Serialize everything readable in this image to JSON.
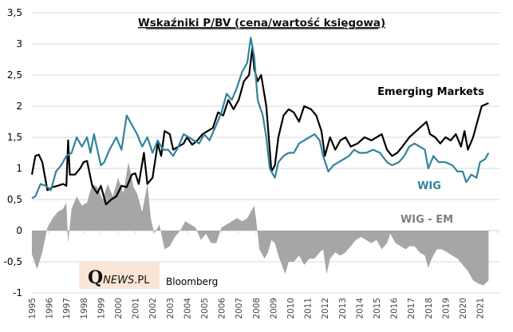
{
  "chart_data": {
    "type": "line",
    "title": "Wskaźniki P/BV (cena/wartość księgowa)",
    "xlabel": "",
    "ylabel": "",
    "ylim": [
      -1,
      3.5
    ],
    "xlim": [
      1995,
      2022
    ],
    "yticks": [
      "3,5",
      "3",
      "2,5",
      "2",
      "1,5",
      "1",
      "0,5",
      "0",
      "-0,5",
      "-1"
    ],
    "ytick_values": [
      3.5,
      3,
      2.5,
      2,
      1.5,
      1,
      0.5,
      0,
      -0.5,
      -1
    ],
    "xticks": [
      "1995",
      "1996",
      "1997",
      "1998",
      "1999",
      "2000",
      "2001",
      "2002",
      "2003",
      "2004",
      "2005",
      "2006",
      "2007",
      "2008",
      "2009",
      "2010",
      "2011",
      "2012",
      "2013",
      "2014",
      "2015",
      "2016",
      "2017",
      "2018",
      "2019",
      "2020",
      "2021"
    ],
    "grid": true,
    "legend": "inline labels",
    "annotations": {
      "em_label": "Emerging Markets",
      "wig_label": "WIG",
      "diff_label": "WIG - EM",
      "source": "Bloomberg",
      "logo_q": "Q",
      "logo_news": "NEWS",
      "logo_pl": ".PL"
    },
    "colors": {
      "em": "#000000",
      "wig": "#31849b",
      "diff": "#a6a6a6",
      "grid": "#d9d9d9",
      "logo_bg": "#fbe5d6"
    },
    "series": [
      {
        "name": "Emerging Markets",
        "type": "line",
        "points": [
          [
            1995.0,
            0.9
          ],
          [
            1995.2,
            1.2
          ],
          [
            1995.4,
            1.22
          ],
          [
            1995.6,
            1.1
          ],
          [
            1995.9,
            0.65
          ],
          [
            1996.2,
            0.7
          ],
          [
            1996.5,
            0.72
          ],
          [
            1996.8,
            0.75
          ],
          [
            1997.0,
            0.72
          ],
          [
            1997.1,
            1.45
          ],
          [
            1997.2,
            0.9
          ],
          [
            1997.5,
            0.9
          ],
          [
            1997.8,
            1.0
          ],
          [
            1998.0,
            1.1
          ],
          [
            1998.2,
            1.12
          ],
          [
            1998.5,
            0.72
          ],
          [
            1998.8,
            0.6
          ],
          [
            1999.0,
            0.72
          ],
          [
            1999.3,
            0.42
          ],
          [
            1999.6,
            0.5
          ],
          [
            1999.9,
            0.55
          ],
          [
            2000.2,
            0.72
          ],
          [
            2000.5,
            0.7
          ],
          [
            2000.8,
            0.9
          ],
          [
            2001.0,
            0.92
          ],
          [
            2001.2,
            0.75
          ],
          [
            2001.5,
            1.25
          ],
          [
            2001.7,
            0.75
          ],
          [
            2002.0,
            0.85
          ],
          [
            2002.3,
            1.4
          ],
          [
            2002.5,
            1.2
          ],
          [
            2002.7,
            1.6
          ],
          [
            2003.0,
            1.55
          ],
          [
            2003.2,
            1.3
          ],
          [
            2003.5,
            1.35
          ],
          [
            2003.8,
            1.4
          ],
          [
            2004.0,
            1.5
          ],
          [
            2004.3,
            1.38
          ],
          [
            2004.6,
            1.45
          ],
          [
            2004.9,
            1.55
          ],
          [
            2005.2,
            1.6
          ],
          [
            2005.5,
            1.65
          ],
          [
            2005.8,
            1.9
          ],
          [
            2006.1,
            1.85
          ],
          [
            2006.4,
            2.1
          ],
          [
            2006.7,
            1.95
          ],
          [
            2007.0,
            2.1
          ],
          [
            2007.3,
            2.4
          ],
          [
            2007.6,
            2.5
          ],
          [
            2007.8,
            2.95
          ],
          [
            2007.9,
            2.6
          ],
          [
            2008.1,
            2.4
          ],
          [
            2008.3,
            2.5
          ],
          [
            2008.6,
            2.0
          ],
          [
            2008.8,
            1.3
          ],
          [
            2008.9,
            0.95
          ],
          [
            2009.1,
            1.05
          ],
          [
            2009.3,
            1.5
          ],
          [
            2009.6,
            1.85
          ],
          [
            2009.9,
            1.95
          ],
          [
            2010.2,
            1.9
          ],
          [
            2010.5,
            1.75
          ],
          [
            2010.8,
            2.0
          ],
          [
            2011.2,
            1.95
          ],
          [
            2011.5,
            1.85
          ],
          [
            2011.8,
            1.6
          ],
          [
            2012.0,
            1.2
          ],
          [
            2012.3,
            1.5
          ],
          [
            2012.6,
            1.3
          ],
          [
            2012.9,
            1.45
          ],
          [
            2013.2,
            1.5
          ],
          [
            2013.5,
            1.35
          ],
          [
            2013.9,
            1.4
          ],
          [
            2014.3,
            1.5
          ],
          [
            2014.7,
            1.45
          ],
          [
            2015.0,
            1.5
          ],
          [
            2015.3,
            1.55
          ],
          [
            2015.6,
            1.3
          ],
          [
            2015.9,
            1.2
          ],
          [
            2016.2,
            1.25
          ],
          [
            2016.5,
            1.35
          ],
          [
            2016.9,
            1.5
          ],
          [
            2017.3,
            1.6
          ],
          [
            2017.7,
            1.7
          ],
          [
            2017.9,
            1.75
          ],
          [
            2018.1,
            1.55
          ],
          [
            2018.4,
            1.5
          ],
          [
            2018.7,
            1.4
          ],
          [
            2019.0,
            1.5
          ],
          [
            2019.3,
            1.45
          ],
          [
            2019.6,
            1.55
          ],
          [
            2019.9,
            1.35
          ],
          [
            2020.1,
            1.6
          ],
          [
            2020.3,
            1.3
          ],
          [
            2020.6,
            1.5
          ],
          [
            2020.9,
            1.8
          ],
          [
            2021.1,
            2.0
          ],
          [
            2021.5,
            2.05
          ]
        ]
      },
      {
        "name": "WIG",
        "type": "line",
        "points": [
          [
            1995.0,
            0.52
          ],
          [
            1995.2,
            0.55
          ],
          [
            1995.5,
            0.75
          ],
          [
            1995.8,
            0.72
          ],
          [
            1996.1,
            0.65
          ],
          [
            1996.4,
            0.95
          ],
          [
            1996.7,
            1.05
          ],
          [
            1997.0,
            1.2
          ],
          [
            1997.3,
            1.25
          ],
          [
            1997.6,
            1.5
          ],
          [
            1997.9,
            1.35
          ],
          [
            1998.2,
            1.5
          ],
          [
            1998.4,
            1.25
          ],
          [
            1998.6,
            1.55
          ],
          [
            1998.8,
            1.3
          ],
          [
            1999.0,
            1.05
          ],
          [
            1999.2,
            1.1
          ],
          [
            1999.5,
            1.3
          ],
          [
            1999.9,
            1.5
          ],
          [
            2000.2,
            1.3
          ],
          [
            2000.5,
            1.85
          ],
          [
            2000.8,
            1.7
          ],
          [
            2001.1,
            1.55
          ],
          [
            2001.4,
            1.35
          ],
          [
            2001.7,
            1.5
          ],
          [
            2002.0,
            1.25
          ],
          [
            2002.3,
            1.45
          ],
          [
            2002.6,
            1.3
          ],
          [
            2002.9,
            1.3
          ],
          [
            2003.2,
            1.2
          ],
          [
            2003.5,
            1.35
          ],
          [
            2003.8,
            1.55
          ],
          [
            2004.1,
            1.5
          ],
          [
            2004.4,
            1.45
          ],
          [
            2004.7,
            1.4
          ],
          [
            2005.0,
            1.55
          ],
          [
            2005.3,
            1.45
          ],
          [
            2005.7,
            1.7
          ],
          [
            2006.0,
            1.9
          ],
          [
            2006.3,
            2.2
          ],
          [
            2006.6,
            2.1
          ],
          [
            2006.9,
            2.3
          ],
          [
            2007.2,
            2.55
          ],
          [
            2007.5,
            2.7
          ],
          [
            2007.7,
            3.1
          ],
          [
            2007.9,
            2.8
          ],
          [
            2008.1,
            2.1
          ],
          [
            2008.4,
            1.85
          ],
          [
            2008.6,
            1.5
          ],
          [
            2008.8,
            1.0
          ],
          [
            2009.0,
            0.9
          ],
          [
            2009.1,
            0.85
          ],
          [
            2009.3,
            1.1
          ],
          [
            2009.6,
            1.2
          ],
          [
            2009.9,
            1.25
          ],
          [
            2010.2,
            1.25
          ],
          [
            2010.5,
            1.4
          ],
          [
            2010.8,
            1.45
          ],
          [
            2011.1,
            1.5
          ],
          [
            2011.4,
            1.55
          ],
          [
            2011.7,
            1.45
          ],
          [
            2011.9,
            1.2
          ],
          [
            2012.2,
            0.95
          ],
          [
            2012.5,
            1.05
          ],
          [
            2012.8,
            1.1
          ],
          [
            2013.1,
            1.15
          ],
          [
            2013.4,
            1.2
          ],
          [
            2013.7,
            1.3
          ],
          [
            2014.0,
            1.25
          ],
          [
            2014.4,
            1.25
          ],
          [
            2014.8,
            1.3
          ],
          [
            2015.2,
            1.25
          ],
          [
            2015.6,
            1.1
          ],
          [
            2015.9,
            1.05
          ],
          [
            2016.3,
            1.1
          ],
          [
            2016.6,
            1.2
          ],
          [
            2016.9,
            1.35
          ],
          [
            2017.2,
            1.4
          ],
          [
            2017.5,
            1.35
          ],
          [
            2017.8,
            1.3
          ],
          [
            2018.0,
            1.0
          ],
          [
            2018.3,
            1.2
          ],
          [
            2018.6,
            1.1
          ],
          [
            2019.0,
            1.1
          ],
          [
            2019.4,
            1.05
          ],
          [
            2019.7,
            0.95
          ],
          [
            2020.0,
            0.95
          ],
          [
            2020.2,
            0.78
          ],
          [
            2020.5,
            0.9
          ],
          [
            2020.8,
            0.85
          ],
          [
            2021.0,
            1.1
          ],
          [
            2021.3,
            1.15
          ],
          [
            2021.5,
            1.25
          ]
        ]
      },
      {
        "name": "WIG - EM",
        "type": "area",
        "points": [
          [
            1995.0,
            -0.38
          ],
          [
            1995.3,
            -0.62
          ],
          [
            1995.6,
            -0.35
          ],
          [
            1995.9,
            0.05
          ],
          [
            1996.2,
            0.2
          ],
          [
            1996.5,
            0.3
          ],
          [
            1996.8,
            0.35
          ],
          [
            1997.0,
            0.45
          ],
          [
            1997.1,
            -0.2
          ],
          [
            1997.3,
            0.35
          ],
          [
            1997.6,
            0.55
          ],
          [
            1997.9,
            0.4
          ],
          [
            1998.2,
            0.45
          ],
          [
            1998.5,
            0.75
          ],
          [
            1998.8,
            0.7
          ],
          [
            1999.1,
            0.5
          ],
          [
            1999.4,
            0.75
          ],
          [
            1999.7,
            0.55
          ],
          [
            2000.0,
            0.85
          ],
          [
            2000.3,
            0.6
          ],
          [
            2000.6,
            1.1
          ],
          [
            2000.9,
            0.7
          ],
          [
            2001.1,
            0.6
          ],
          [
            2001.4,
            0.3
          ],
          [
            2001.7,
            0.75
          ],
          [
            2001.9,
            0.2
          ],
          [
            2002.1,
            -0.05
          ],
          [
            2002.4,
            0.1
          ],
          [
            2002.7,
            -0.3
          ],
          [
            2003.0,
            -0.25
          ],
          [
            2003.3,
            -0.1
          ],
          [
            2003.6,
            0.0
          ],
          [
            2003.9,
            0.15
          ],
          [
            2004.2,
            0.1
          ],
          [
            2004.5,
            0.05
          ],
          [
            2004.8,
            -0.15
          ],
          [
            2005.1,
            -0.05
          ],
          [
            2005.4,
            -0.2
          ],
          [
            2005.7,
            -0.2
          ],
          [
            2006.0,
            0.05
          ],
          [
            2006.3,
            0.1
          ],
          [
            2006.6,
            0.15
          ],
          [
            2006.9,
            0.2
          ],
          [
            2007.2,
            0.15
          ],
          [
            2007.5,
            0.2
          ],
          [
            2007.7,
            0.3
          ],
          [
            2007.9,
            0.4
          ],
          [
            2008.0,
            0.2
          ],
          [
            2008.2,
            -0.3
          ],
          [
            2008.5,
            -0.45
          ],
          [
            2008.7,
            -0.35
          ],
          [
            2008.9,
            -0.15
          ],
          [
            2009.1,
            -0.2
          ],
          [
            2009.3,
            -0.4
          ],
          [
            2009.5,
            -0.55
          ],
          [
            2009.7,
            -0.7
          ],
          [
            2009.9,
            -0.5
          ],
          [
            2010.2,
            -0.5
          ],
          [
            2010.5,
            -0.4
          ],
          [
            2010.8,
            -0.55
          ],
          [
            2011.1,
            -0.45
          ],
          [
            2011.4,
            -0.45
          ],
          [
            2011.7,
            -0.35
          ],
          [
            2011.9,
            -0.3
          ],
          [
            2012.1,
            -0.7
          ],
          [
            2012.3,
            -0.45
          ],
          [
            2012.6,
            -0.35
          ],
          [
            2012.9,
            -0.4
          ],
          [
            2013.2,
            -0.35
          ],
          [
            2013.5,
            -0.25
          ],
          [
            2013.8,
            -0.15
          ],
          [
            2014.1,
            -0.1
          ],
          [
            2014.4,
            -0.15
          ],
          [
            2014.7,
            -0.2
          ],
          [
            2015.0,
            -0.15
          ],
          [
            2015.3,
            -0.3
          ],
          [
            2015.6,
            -0.2
          ],
          [
            2015.8,
            -0.05
          ],
          [
            2016.1,
            -0.2
          ],
          [
            2016.4,
            -0.25
          ],
          [
            2016.7,
            -0.3
          ],
          [
            2016.9,
            -0.25
          ],
          [
            2017.2,
            -0.25
          ],
          [
            2017.5,
            -0.35
          ],
          [
            2017.8,
            -0.4
          ],
          [
            2018.0,
            -0.6
          ],
          [
            2018.2,
            -0.45
          ],
          [
            2018.5,
            -0.3
          ],
          [
            2018.8,
            -0.3
          ],
          [
            2019.1,
            -0.35
          ],
          [
            2019.4,
            -0.4
          ],
          [
            2019.7,
            -0.45
          ],
          [
            2020.0,
            -0.55
          ],
          [
            2020.3,
            -0.65
          ],
          [
            2020.6,
            -0.8
          ],
          [
            2020.9,
            -0.85
          ],
          [
            2021.2,
            -0.88
          ],
          [
            2021.5,
            -0.8
          ]
        ]
      }
    ]
  }
}
